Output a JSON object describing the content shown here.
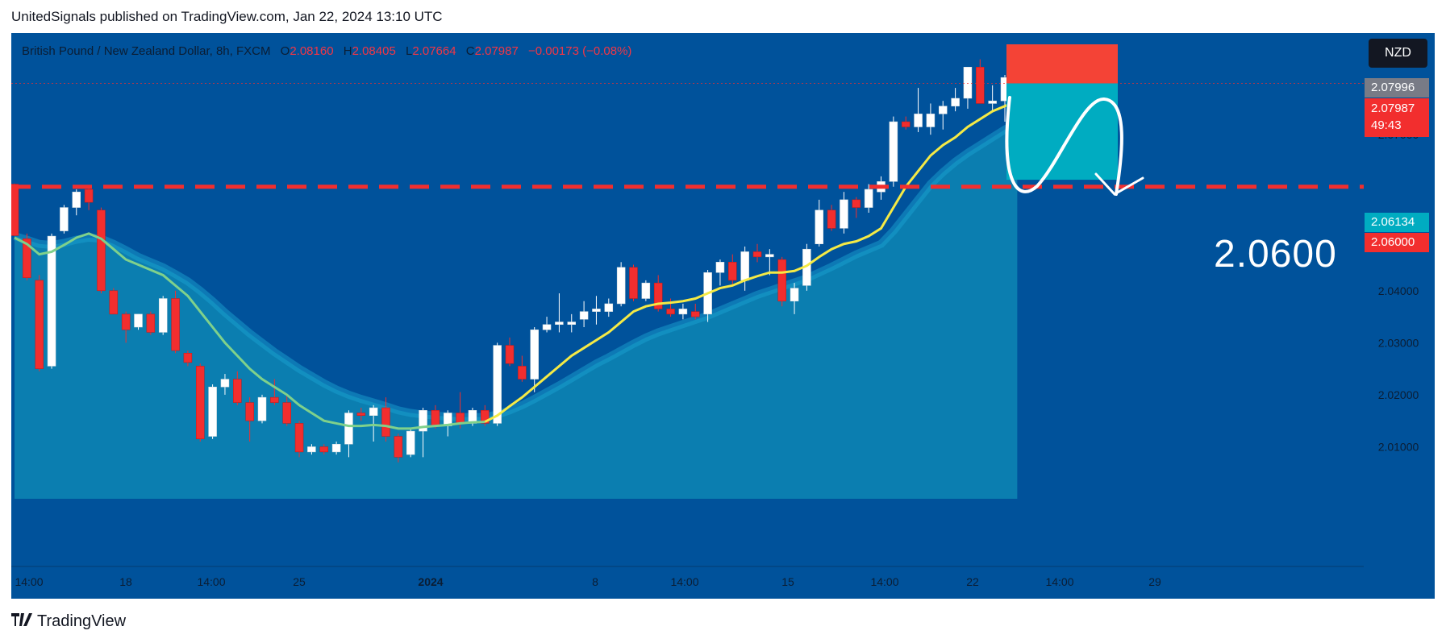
{
  "header": {
    "published": "UnitedSignals published on TradingView.com, Jan 22, 2024 13:10 UTC"
  },
  "legend": {
    "symbol": "British Pound / New Zealand Dollar, 8h, FXCM",
    "o_label": "O",
    "o_value": "2.08160",
    "h_label": "H",
    "h_value": "2.08405",
    "l_label": "L",
    "l_value": "2.07664",
    "c_label": "C",
    "c_value": "2.07987",
    "change": "−0.00173 (−0.08%)"
  },
  "currency_button": "NZD",
  "price_tags": {
    "tag1": "2.07996",
    "tag2": "2.07987",
    "countdown": "49:43",
    "tag3": "2.06134",
    "tag4": "2.06000"
  },
  "annotation": {
    "target_label": "2.0600"
  },
  "footer": {
    "brand": "TradingView"
  },
  "colors": {
    "background": "#00529b",
    "bull": "#ffffff",
    "bear": "#f22e2e",
    "ema": "#f5ea45",
    "lower_ma": "#7fd18b",
    "area": "#0d86b4",
    "stop_box": "#f44336",
    "target_box": "#00acc1",
    "level_line": "#f22e2e"
  },
  "chart_data": {
    "type": "candlestick",
    "title": "British Pound / New Zealand Dollar, 8h, FXCM",
    "ylim": [
      2.0,
      2.088
    ],
    "y_ticks": [
      "2.07000",
      "2.05000",
      "2.04000",
      "2.03000",
      "2.02000",
      "2.01000"
    ],
    "y_tick_values": [
      2.07,
      2.05,
      2.04,
      2.03,
      2.02,
      2.01
    ],
    "x_ticks": [
      "14:00",
      "18",
      "14:00",
      "25",
      "2024",
      "8",
      "14:00",
      "15",
      "14:00",
      "22",
      "14:00",
      "29"
    ],
    "horizontal_level": 2.06,
    "grid": false,
    "candles": [
      {
        "o": 2.0605,
        "h": 2.0606,
        "l": 2.0505,
        "c": 2.0506
      },
      {
        "o": 2.05,
        "h": 2.051,
        "l": 2.042,
        "c": 2.0425
      },
      {
        "o": 2.042,
        "h": 2.043,
        "l": 2.0245,
        "c": 2.025
      },
      {
        "o": 2.0255,
        "h": 2.051,
        "l": 2.025,
        "c": 2.0505
      },
      {
        "o": 2.0515,
        "h": 2.0565,
        "l": 2.051,
        "c": 2.056
      },
      {
        "o": 2.056,
        "h": 2.0595,
        "l": 2.0545,
        "c": 2.059
      },
      {
        "o": 2.0595,
        "h": 2.0598,
        "l": 2.0555,
        "c": 2.057
      },
      {
        "o": 2.0555,
        "h": 2.056,
        "l": 2.0395,
        "c": 2.04
      },
      {
        "o": 2.04,
        "h": 2.0405,
        "l": 2.0355,
        "c": 2.0355
      },
      {
        "o": 2.0355,
        "h": 2.036,
        "l": 2.03,
        "c": 2.0325
      },
      {
        "o": 2.033,
        "h": 2.0355,
        "l": 2.0325,
        "c": 2.0355
      },
      {
        "o": 2.0355,
        "h": 2.036,
        "l": 2.0315,
        "c": 2.032
      },
      {
        "o": 2.032,
        "h": 2.039,
        "l": 2.0315,
        "c": 2.0385
      },
      {
        "o": 2.0385,
        "h": 2.04,
        "l": 2.028,
        "c": 2.0285
      },
      {
        "o": 2.028,
        "h": 2.0285,
        "l": 2.0255,
        "c": 2.0262
      },
      {
        "o": 2.0255,
        "h": 2.026,
        "l": 2.011,
        "c": 2.0115
      },
      {
        "o": 2.012,
        "h": 2.022,
        "l": 2.0115,
        "c": 2.0215
      },
      {
        "o": 2.0215,
        "h": 2.024,
        "l": 2.02,
        "c": 2.023
      },
      {
        "o": 2.023,
        "h": 2.0245,
        "l": 2.018,
        "c": 2.0185
      },
      {
        "o": 2.0185,
        "h": 2.0195,
        "l": 2.011,
        "c": 2.015
      },
      {
        "o": 2.015,
        "h": 2.02,
        "l": 2.0145,
        "c": 2.0195
      },
      {
        "o": 2.0195,
        "h": 2.023,
        "l": 2.018,
        "c": 2.0185
      },
      {
        "o": 2.0185,
        "h": 2.02,
        "l": 2.014,
        "c": 2.0145
      },
      {
        "o": 2.0145,
        "h": 2.015,
        "l": 2.008,
        "c": 2.009
      },
      {
        "o": 2.009,
        "h": 2.0105,
        "l": 2.0085,
        "c": 2.01
      },
      {
        "o": 2.01,
        "h": 2.0105,
        "l": 2.0085,
        "c": 2.009
      },
      {
        "o": 2.009,
        "h": 2.011,
        "l": 2.0085,
        "c": 2.0105
      },
      {
        "o": 2.0105,
        "h": 2.017,
        "l": 2.008,
        "c": 2.0165
      },
      {
        "o": 2.0165,
        "h": 2.0175,
        "l": 2.015,
        "c": 2.016
      },
      {
        "o": 2.016,
        "h": 2.018,
        "l": 2.011,
        "c": 2.0175
      },
      {
        "o": 2.0175,
        "h": 2.0195,
        "l": 2.011,
        "c": 2.012
      },
      {
        "o": 2.012,
        "h": 2.0125,
        "l": 2.007,
        "c": 2.008
      },
      {
        "o": 2.0085,
        "h": 2.0135,
        "l": 2.008,
        "c": 2.013
      },
      {
        "o": 2.013,
        "h": 2.0175,
        "l": 2.008,
        "c": 2.017
      },
      {
        "o": 2.017,
        "h": 2.018,
        "l": 2.0135,
        "c": 2.014
      },
      {
        "o": 2.014,
        "h": 2.017,
        "l": 2.012,
        "c": 2.0165
      },
      {
        "o": 2.0165,
        "h": 2.0205,
        "l": 2.0135,
        "c": 2.0145
      },
      {
        "o": 2.0145,
        "h": 2.0175,
        "l": 2.014,
        "c": 2.017
      },
      {
        "o": 2.017,
        "h": 2.018,
        "l": 2.014,
        "c": 2.0145
      },
      {
        "o": 2.0145,
        "h": 2.03,
        "l": 2.014,
        "c": 2.0295
      },
      {
        "o": 2.0295,
        "h": 2.031,
        "l": 2.0255,
        "c": 2.026
      },
      {
        "o": 2.0255,
        "h": 2.0275,
        "l": 2.0225,
        "c": 2.023
      },
      {
        "o": 2.023,
        "h": 2.033,
        "l": 2.0205,
        "c": 2.0325
      },
      {
        "o": 2.0325,
        "h": 2.035,
        "l": 2.032,
        "c": 2.0335
      },
      {
        "o": 2.0335,
        "h": 2.0395,
        "l": 2.032,
        "c": 2.034
      },
      {
        "o": 2.0335,
        "h": 2.0355,
        "l": 2.032,
        "c": 2.034
      },
      {
        "o": 2.0345,
        "h": 2.038,
        "l": 2.033,
        "c": 2.036
      },
      {
        "o": 2.036,
        "h": 2.039,
        "l": 2.0335,
        "c": 2.0365
      },
      {
        "o": 2.036,
        "h": 2.0385,
        "l": 2.035,
        "c": 2.0375
      },
      {
        "o": 2.0375,
        "h": 2.0455,
        "l": 2.037,
        "c": 2.0445
      },
      {
        "o": 2.0445,
        "h": 2.045,
        "l": 2.038,
        "c": 2.0385
      },
      {
        "o": 2.0385,
        "h": 2.042,
        "l": 2.038,
        "c": 2.0415
      },
      {
        "o": 2.0415,
        "h": 2.043,
        "l": 2.036,
        "c": 2.0365
      },
      {
        "o": 2.0365,
        "h": 2.0385,
        "l": 2.035,
        "c": 2.0355
      },
      {
        "o": 2.0355,
        "h": 2.0375,
        "l": 2.0345,
        "c": 2.0365
      },
      {
        "o": 2.036,
        "h": 2.0375,
        "l": 2.0345,
        "c": 2.035
      },
      {
        "o": 2.0355,
        "h": 2.044,
        "l": 2.034,
        "c": 2.0435
      },
      {
        "o": 2.0435,
        "h": 2.046,
        "l": 2.041,
        "c": 2.0455
      },
      {
        "o": 2.0455,
        "h": 2.047,
        "l": 2.041,
        "c": 2.042
      },
      {
        "o": 2.042,
        "h": 2.0485,
        "l": 2.04,
        "c": 2.0475
      },
      {
        "o": 2.0475,
        "h": 2.049,
        "l": 2.0455,
        "c": 2.0465
      },
      {
        "o": 2.0465,
        "h": 2.048,
        "l": 2.043,
        "c": 2.047
      },
      {
        "o": 2.046,
        "h": 2.0465,
        "l": 2.037,
        "c": 2.038
      },
      {
        "o": 2.038,
        "h": 2.0415,
        "l": 2.0355,
        "c": 2.0405
      },
      {
        "o": 2.041,
        "h": 2.049,
        "l": 2.04,
        "c": 2.048
      },
      {
        "o": 2.049,
        "h": 2.0575,
        "l": 2.0485,
        "c": 2.0555
      },
      {
        "o": 2.0555,
        "h": 2.0565,
        "l": 2.0515,
        "c": 2.052
      },
      {
        "o": 2.052,
        "h": 2.059,
        "l": 2.051,
        "c": 2.0575
      },
      {
        "o": 2.0575,
        "h": 2.058,
        "l": 2.054,
        "c": 2.056
      },
      {
        "o": 2.056,
        "h": 2.0605,
        "l": 2.055,
        "c": 2.0595
      },
      {
        "o": 2.059,
        "h": 2.062,
        "l": 2.0575,
        "c": 2.061
      },
      {
        "o": 2.061,
        "h": 2.0735,
        "l": 2.06,
        "c": 2.0725
      },
      {
        "o": 2.0725,
        "h": 2.0735,
        "l": 2.071,
        "c": 2.0715
      },
      {
        "o": 2.0715,
        "h": 2.079,
        "l": 2.0705,
        "c": 2.074
      },
      {
        "o": 2.0715,
        "h": 2.076,
        "l": 2.07,
        "c": 2.074
      },
      {
        "o": 2.074,
        "h": 2.0765,
        "l": 2.071,
        "c": 2.0755
      },
      {
        "o": 2.0755,
        "h": 2.079,
        "l": 2.0745,
        "c": 2.077
      },
      {
        "o": 2.077,
        "h": 2.083,
        "l": 2.075,
        "c": 2.083
      },
      {
        "o": 2.083,
        "h": 2.0845,
        "l": 2.076,
        "c": 2.076
      },
      {
        "o": 2.076,
        "h": 2.0795,
        "l": 2.0745,
        "c": 2.0765
      },
      {
        "o": 2.0765,
        "h": 2.0815,
        "l": 2.0725,
        "c": 2.081
      },
      {
        "o": 2.0815,
        "h": 2.084,
        "l": 2.0765,
        "c": 2.0799
      }
    ],
    "ema": [
      2.0502,
      2.049,
      2.047,
      2.0475,
      2.0488,
      2.0502,
      2.051,
      2.05,
      2.048,
      2.046,
      2.045,
      2.044,
      2.043,
      2.041,
      2.039,
      2.036,
      2.033,
      2.03,
      2.0275,
      2.025,
      2.023,
      2.0215,
      2.02,
      2.018,
      2.0165,
      2.015,
      2.0145,
      2.014,
      2.014,
      2.0142,
      2.014,
      2.0135,
      2.0135,
      2.0138,
      2.014,
      2.0142,
      2.0145,
      2.0147,
      2.0148,
      2.016,
      2.0178,
      2.0195,
      2.0215,
      2.0235,
      2.0255,
      2.0275,
      2.029,
      2.0305,
      2.032,
      2.034,
      2.036,
      2.037,
      2.0375,
      2.0377,
      2.038,
      2.0385,
      2.0395,
      2.0405,
      2.041,
      2.042,
      2.0428,
      2.0435,
      2.0435,
      2.0438,
      2.0448,
      2.0465,
      2.048,
      2.049,
      2.0495,
      2.0505,
      2.052,
      2.056,
      2.06,
      2.063,
      2.066,
      2.068,
      2.0695,
      2.0715,
      2.073,
      2.0745,
      2.0755,
      2.0765
    ],
    "ma_lower": [
      2.0505,
      2.0498,
      2.049,
      2.0488,
      2.0492,
      2.0498,
      2.0502,
      2.05,
      2.049,
      2.0478,
      2.0465,
      2.0455,
      2.0445,
      2.0432,
      2.0418,
      2.04,
      2.038,
      2.0358,
      2.0338,
      2.0318,
      2.03,
      2.0282,
      2.0266,
      2.025,
      2.0236,
      2.0222,
      2.021,
      2.02,
      2.0192,
      2.0185,
      2.0178,
      2.017,
      2.0165,
      2.0162,
      2.016,
      2.0158,
      2.0157,
      2.0157,
      2.0157,
      2.0162,
      2.017,
      2.018,
      2.0192,
      2.0205,
      2.0218,
      2.0232,
      2.0246,
      2.026,
      2.0272,
      2.0285,
      2.0298,
      2.031,
      2.032,
      2.0328,
      2.0336,
      2.0344,
      2.0352,
      2.0362,
      2.0372,
      2.0382,
      2.0392,
      2.04,
      2.0408,
      2.0416,
      2.0424,
      2.0435,
      2.0446,
      2.0458,
      2.047,
      2.048,
      2.049,
      2.0515,
      2.0545,
      2.0575,
      2.0605,
      2.0628,
      2.0648,
      2.0665,
      2.068,
      2.0695,
      2.071,
      2.0722
    ]
  }
}
